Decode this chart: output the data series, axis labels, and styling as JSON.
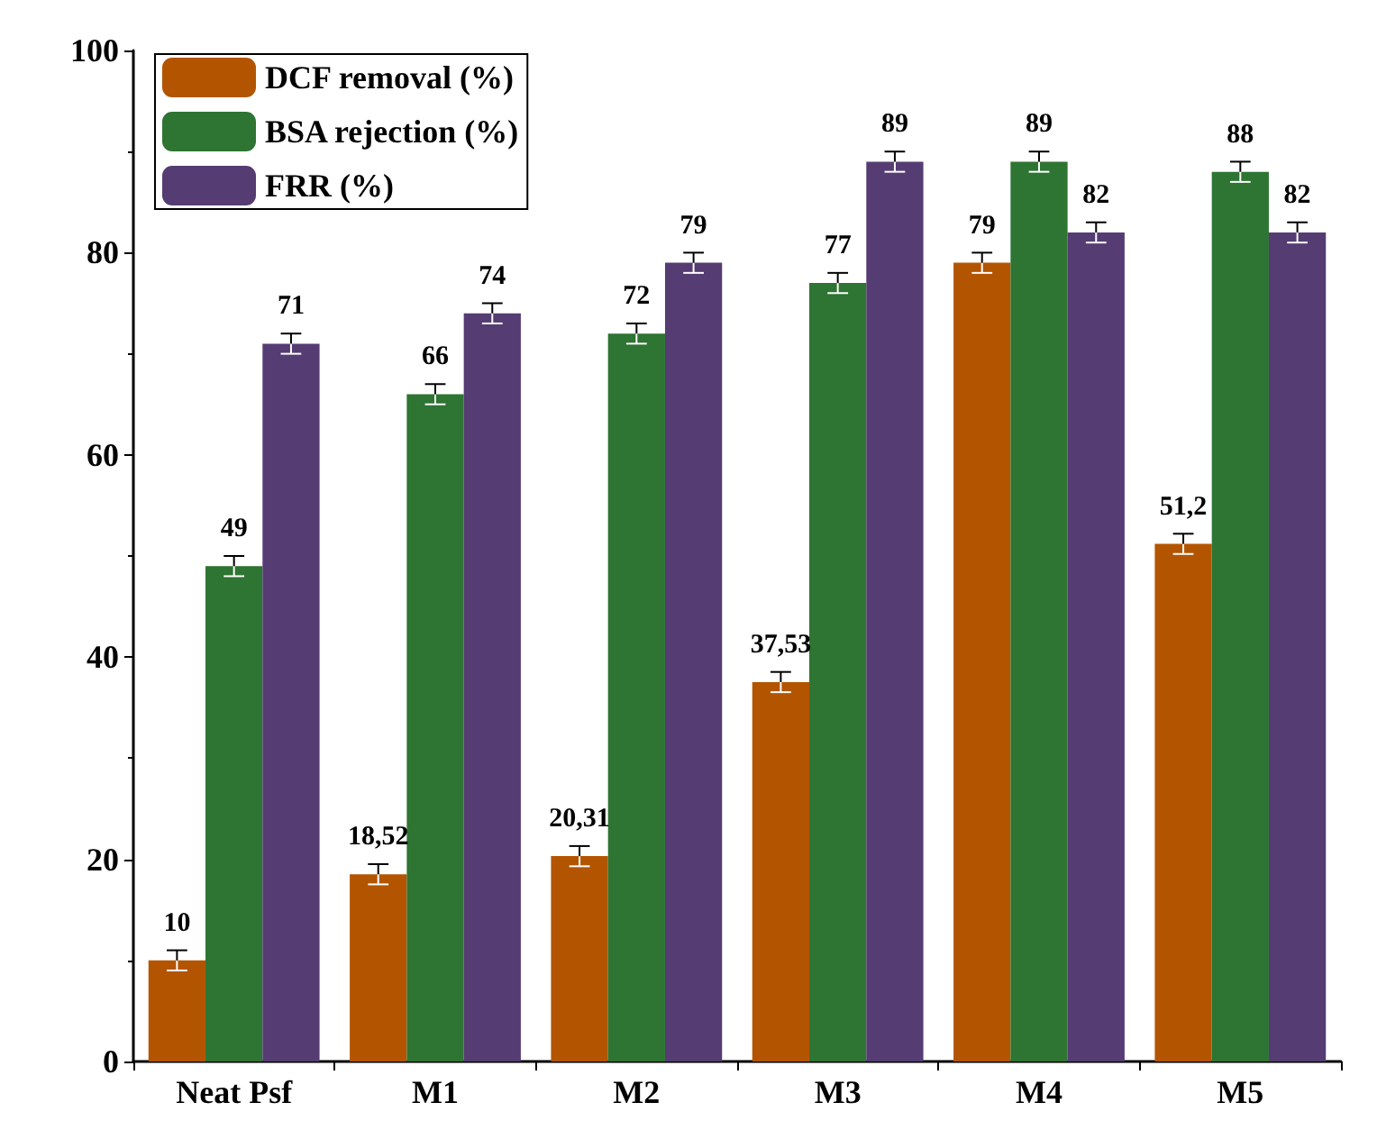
{
  "chart_data": {
    "type": "bar",
    "categories": [
      "Neat Psf",
      "M1",
      "M2",
      "M3",
      "M4",
      "M5"
    ],
    "series": [
      {
        "name": "DCF removal (%)",
        "color": "#b35500",
        "values": [
          10,
          18.52,
          20.31,
          37.53,
          79,
          51.2
        ],
        "value_labels": [
          "10",
          "18,52",
          "20,31",
          "37,53",
          "79",
          "51,2"
        ],
        "errors": [
          1,
          1,
          1,
          1,
          1,
          1
        ]
      },
      {
        "name": "BSA rejection (%)",
        "color": "#2e7432",
        "values": [
          49,
          66,
          72,
          77,
          89,
          88
        ],
        "value_labels": [
          "49",
          "66",
          "72",
          "77",
          "89",
          "88"
        ],
        "errors": [
          1,
          1,
          1,
          1,
          1,
          1
        ]
      },
      {
        "name": "FRR (%)",
        "color": "#553c72",
        "values": [
          71,
          74,
          79,
          89,
          82,
          82
        ],
        "value_labels": [
          "71",
          "74",
          "79",
          "89",
          "82",
          "82"
        ],
        "errors": [
          1,
          1,
          1,
          1,
          1,
          1
        ]
      }
    ],
    "ylim": [
      0,
      100
    ],
    "yticks": [
      0,
      20,
      40,
      60,
      80,
      100
    ],
    "grid": false,
    "legend": "top left"
  }
}
